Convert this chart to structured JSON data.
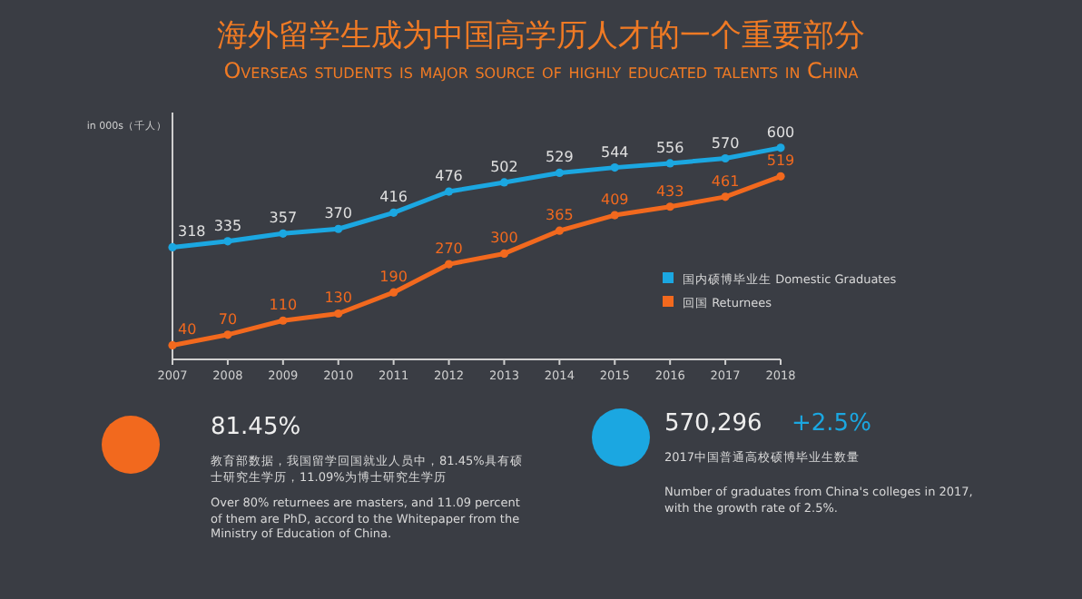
{
  "chart_data": {
    "type": "line",
    "title": "海外留学生成为中国高学历人才的一个重要部分",
    "subtitle": "Overseas students is  major source of highly educated talents in China",
    "ylabel": "in 000s（千人）",
    "categories": [
      "2007",
      "2008",
      "2009",
      "2010",
      "2011",
      "2012",
      "2013",
      "2014",
      "2015",
      "2016",
      "2017",
      "2018"
    ],
    "series": [
      {
        "name": "国内硕博毕业生 Domestic Graduates",
        "color": "#1ba7e1",
        "values": [
          318,
          335,
          357,
          370,
          416,
          476,
          502,
          529,
          544,
          556,
          570,
          600
        ]
      },
      {
        "name": "回国 Returnees",
        "color": "#f2691e",
        "values": [
          40,
          70,
          110,
          130,
          190,
          270,
          300,
          365,
          409,
          433,
          461,
          519
        ]
      }
    ],
    "ylim": [
      0,
      700
    ],
    "data_labels": true,
    "marker": "circle",
    "line_style": "solid",
    "legend": "right",
    "grid": false,
    "annotations": [
      "81.45%",
      "教育部数据，我国留学回国就业人员中，81.45%具有硕士研究生学历，11.09%为博士研究生学历",
      "Over 80% returnees are masters, and 11.09 percent of them are PhD, accord to the Whitepaper from the Ministry of Education of China.",
      "570,296",
      "+2.5%",
      "2017中国普通高校硕博毕业生数量",
      "Number of graduates from China's colleges in 2017, with the growth rate of 2.5%."
    ]
  }
}
